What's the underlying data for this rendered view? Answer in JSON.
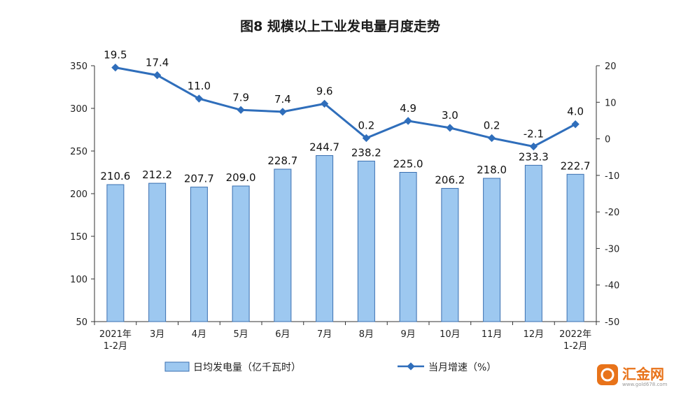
{
  "chart_data": {
    "type": "bar+line",
    "title": "图8 规模以上工业发电量月度走势",
    "categories": [
      "2021年|1-2月",
      "3月",
      "4月",
      "5月",
      "6月",
      "7月",
      "8月",
      "9月",
      "10月",
      "11月",
      "12月",
      "2022年|1-2月"
    ],
    "series": [
      {
        "name": "日均发电量（亿千瓦时）",
        "type": "bar",
        "axis": "left",
        "color": "#9dc8f0",
        "values": [
          210.6,
          212.2,
          207.7,
          209.0,
          228.7,
          244.7,
          238.2,
          225.0,
          206.2,
          218.0,
          233.3,
          222.7
        ],
        "labels": [
          "210.6",
          "212.2",
          "207.7",
          "209.0",
          "228.7",
          "244.7",
          "238.2",
          "225.0",
          "206.2",
          "218.0",
          "233.3",
          "222.7"
        ]
      },
      {
        "name": "当月增速（%）",
        "type": "line",
        "axis": "right",
        "color": "#2f6ebb",
        "values": [
          19.5,
          17.4,
          11.0,
          7.9,
          7.4,
          9.6,
          0.2,
          4.9,
          3.0,
          0.2,
          -2.1,
          4.0
        ],
        "labels": [
          "19.5",
          "17.4",
          "11.0",
          "7.9",
          "7.4",
          "9.6",
          "0.2",
          "4.9",
          "3.0",
          "0.2",
          "-2.1",
          "4.0"
        ]
      }
    ],
    "y_left": {
      "min": 50,
      "max": 350,
      "ticks": [
        "50",
        "100",
        "150",
        "200",
        "250",
        "300",
        "350"
      ]
    },
    "y_right": {
      "min": -50,
      "max": 20,
      "ticks": [
        "-50",
        "-40",
        "-30",
        "-20",
        "-10",
        "0",
        "10",
        "20"
      ]
    },
    "grid": false,
    "legend_position": "bottom"
  },
  "watermark": {
    "brand": "汇金网",
    "url": "www.gold678.com",
    "icon": "gold678-logo-icon",
    "color": "#e8731a"
  }
}
